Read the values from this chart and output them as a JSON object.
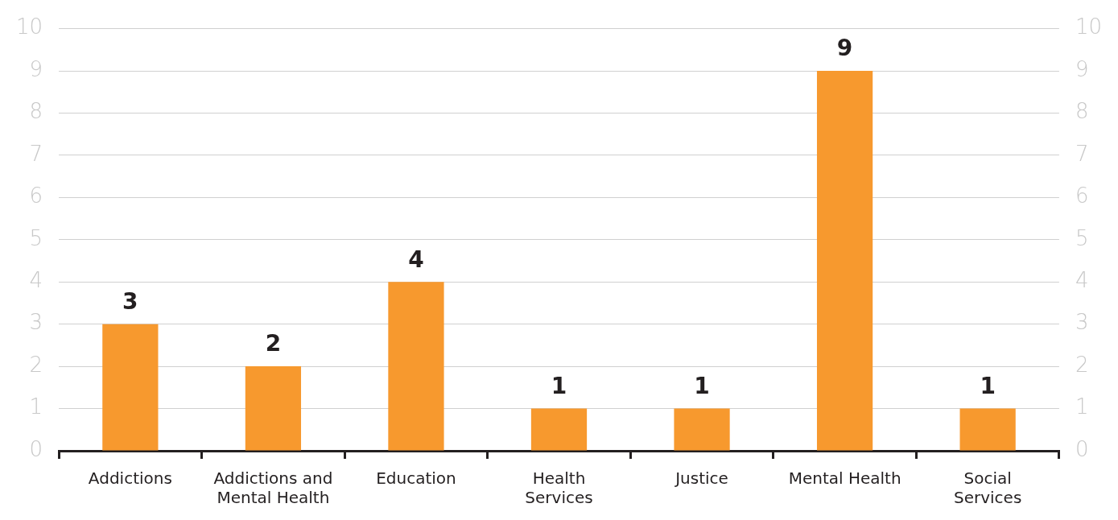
{
  "chart_data": {
    "type": "bar",
    "categories": [
      "Addictions",
      "Addictions and Mental Health",
      "Education",
      "Health Services",
      "Justice",
      "Mental Health",
      "Social Services"
    ],
    "values": [
      3,
      2,
      4,
      1,
      1,
      9,
      1
    ],
    "color": "#f7992e",
    "ylim": [
      0,
      10
    ],
    "yticks": [
      0,
      1,
      2,
      3,
      4,
      5,
      6,
      7,
      8,
      9,
      10
    ],
    "y2lim": [
      0,
      10
    ],
    "y2ticks": [
      0,
      1,
      2,
      3,
      4,
      5,
      6,
      7,
      8,
      9,
      10
    ],
    "grid": "y",
    "data_labels": true
  }
}
